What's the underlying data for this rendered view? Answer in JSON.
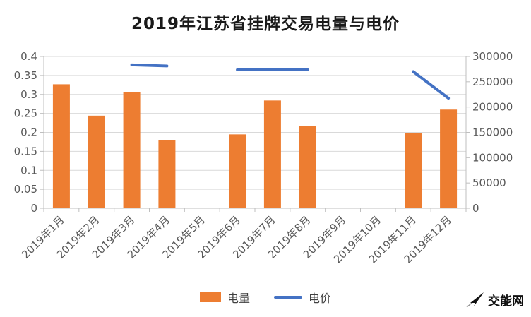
{
  "title": "2019年江苏省挂牌交易电量与电价",
  "legend": [
    {
      "label": "电量",
      "type": "bar",
      "color": "#ED7D31"
    },
    {
      "label": "电价",
      "type": "line",
      "color": "#4472C4"
    }
  ],
  "watermark": {
    "text": "交能网"
  },
  "chart_data": {
    "type": "bar+line combo",
    "title": "2019年江苏省挂牌交易电量与电价",
    "categories": [
      "2019年1月",
      "2019年2月",
      "2019年3月",
      "2019年4月",
      "2019年5月",
      "2019年6月",
      "2019年7月",
      "2019年8月",
      "2019年9月",
      "2019年10月",
      "2019年11月",
      "2019年12月"
    ],
    "series": [
      {
        "name": "电量",
        "type": "bar",
        "axis": "right",
        "color": "#ED7D31",
        "values": [
          245000,
          183000,
          229000,
          135000,
          null,
          146000,
          213000,
          162000,
          null,
          null,
          149000,
          195000
        ]
      },
      {
        "name": "电价",
        "type": "line",
        "axis": "left",
        "color": "#4472C4",
        "values": [
          null,
          null,
          0.378,
          0.375,
          null,
          0.365,
          0.365,
          0.365,
          null,
          null,
          0.36,
          0.29
        ]
      }
    ],
    "left_axis": {
      "min": 0,
      "max": 0.4,
      "step": 0.05,
      "ticks": [
        "0",
        "0.05",
        "0.1",
        "0.15",
        "0.2",
        "0.25",
        "0.3",
        "0.35",
        "0.4"
      ]
    },
    "right_axis": {
      "min": 0,
      "max": 300000,
      "step": 50000,
      "ticks": [
        "0",
        "50000",
        "100000",
        "150000",
        "200000",
        "250000",
        "300000"
      ]
    },
    "grid": true,
    "legend_position": "bottom"
  }
}
